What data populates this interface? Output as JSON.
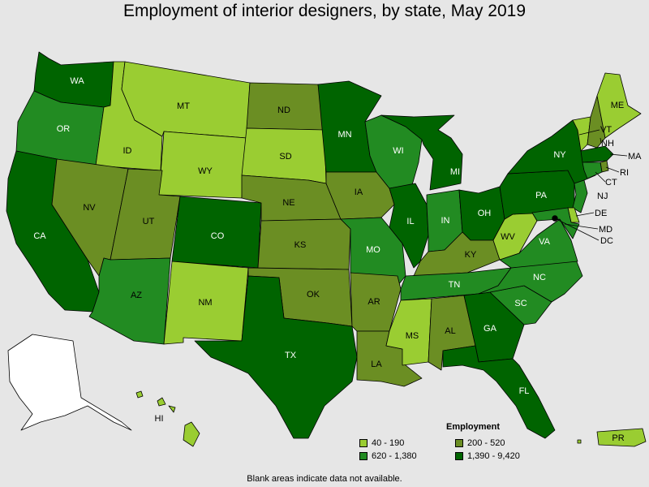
{
  "title": "Employment of interior designers, by state, May 2019",
  "note": "Blank areas indicate data not available.",
  "legend": {
    "title": "Employment",
    "items": [
      {
        "label": "40 - 190",
        "color": "#9acd32"
      },
      {
        "label": "200 - 520",
        "color": "#6b8e23"
      },
      {
        "label": "620 - 1,380",
        "color": "#228b22"
      },
      {
        "label": "1,390 - 9,420",
        "color": "#006400"
      }
    ]
  },
  "colors": {
    "c1": "#9acd32",
    "c2": "#6b8e23",
    "c3": "#228b22",
    "c4": "#006400",
    "none": "#ffffff"
  },
  "states": [
    {
      "abbr": "WA",
      "class": "c4"
    },
    {
      "abbr": "OR",
      "class": "c3"
    },
    {
      "abbr": "CA",
      "class": "c4"
    },
    {
      "abbr": "ID",
      "class": "c1"
    },
    {
      "abbr": "NV",
      "class": "c2"
    },
    {
      "abbr": "MT",
      "class": "c1"
    },
    {
      "abbr": "WY",
      "class": "c1"
    },
    {
      "abbr": "UT",
      "class": "c2"
    },
    {
      "abbr": "AZ",
      "class": "c3"
    },
    {
      "abbr": "CO",
      "class": "c4"
    },
    {
      "abbr": "NM",
      "class": "c1"
    },
    {
      "abbr": "ND",
      "class": "c2"
    },
    {
      "abbr": "SD",
      "class": "c1"
    },
    {
      "abbr": "NE",
      "class": "c2"
    },
    {
      "abbr": "KS",
      "class": "c2"
    },
    {
      "abbr": "OK",
      "class": "c2"
    },
    {
      "abbr": "TX",
      "class": "c4"
    },
    {
      "abbr": "MN",
      "class": "c4"
    },
    {
      "abbr": "IA",
      "class": "c2"
    },
    {
      "abbr": "MO",
      "class": "c3"
    },
    {
      "abbr": "AR",
      "class": "c2"
    },
    {
      "abbr": "LA",
      "class": "c2"
    },
    {
      "abbr": "WI",
      "class": "c3"
    },
    {
      "abbr": "IL",
      "class": "c4"
    },
    {
      "abbr": "MI",
      "class": "c4"
    },
    {
      "abbr": "IN",
      "class": "c3"
    },
    {
      "abbr": "OH",
      "class": "c4"
    },
    {
      "abbr": "KY",
      "class": "c2"
    },
    {
      "abbr": "TN",
      "class": "c3"
    },
    {
      "abbr": "MS",
      "class": "c1"
    },
    {
      "abbr": "AL",
      "class": "c2"
    },
    {
      "abbr": "GA",
      "class": "c4"
    },
    {
      "abbr": "FL",
      "class": "c4"
    },
    {
      "abbr": "SC",
      "class": "c3"
    },
    {
      "abbr": "NC",
      "class": "c3"
    },
    {
      "abbr": "VA",
      "class": "c3"
    },
    {
      "abbr": "WV",
      "class": "c1"
    },
    {
      "abbr": "PA",
      "class": "c4"
    },
    {
      "abbr": "NY",
      "class": "c4"
    },
    {
      "abbr": "VT",
      "class": "c1"
    },
    {
      "abbr": "NH",
      "class": "c2"
    },
    {
      "abbr": "ME",
      "class": "c1"
    },
    {
      "abbr": "MA",
      "class": "c4"
    },
    {
      "abbr": "RI",
      "class": "c2"
    },
    {
      "abbr": "CT",
      "class": "c3"
    },
    {
      "abbr": "NJ",
      "class": "c3"
    },
    {
      "abbr": "DE",
      "class": "c1"
    },
    {
      "abbr": "MD",
      "class": "c3"
    },
    {
      "abbr": "DC",
      "class": "c4"
    },
    {
      "abbr": "AK",
      "class": "none"
    },
    {
      "abbr": "HI",
      "class": "c1"
    },
    {
      "abbr": "PR",
      "class": "c1"
    }
  ]
}
